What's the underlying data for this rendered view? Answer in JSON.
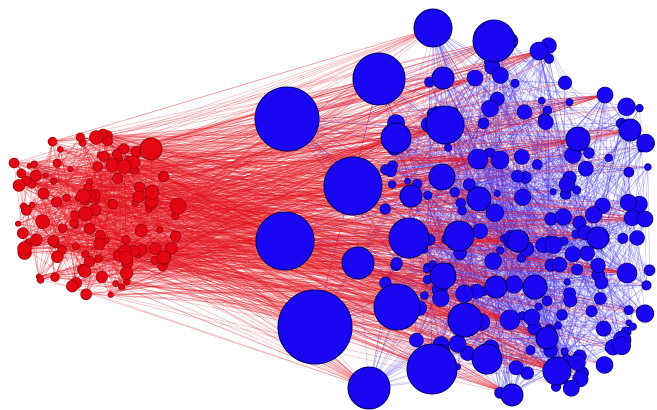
{
  "diagram": {
    "type": "network-graph",
    "groups": [
      {
        "id": "red",
        "color": "#e30613",
        "stroke": "#8a0008",
        "edge_color": "#e5141f"
      },
      {
        "id": "blue",
        "color": "#1a06f0",
        "stroke": "#000066",
        "edge_color": "#3b2ff2"
      }
    ],
    "background": "#ffffff"
  }
}
